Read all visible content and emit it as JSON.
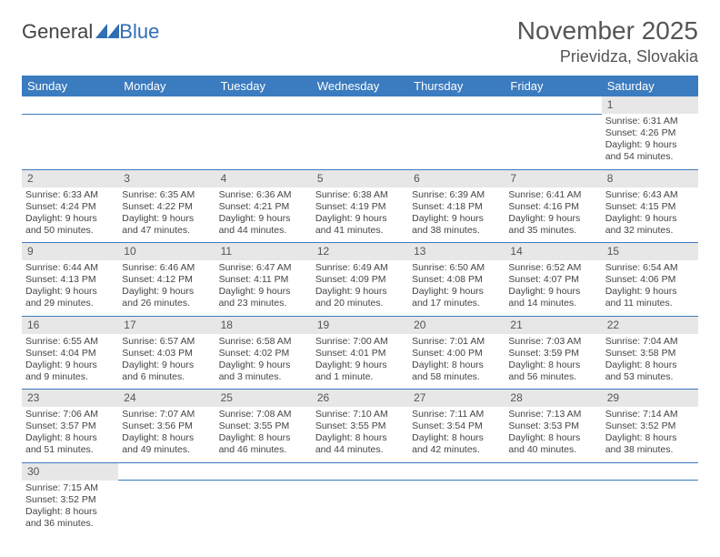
{
  "brand": {
    "name_part1": "General",
    "name_part2": "Blue"
  },
  "colors": {
    "header_bg": "#3b7bbf",
    "header_text": "#ffffff",
    "daynum_bg": "#e7e7e7",
    "border": "#3b7bbf",
    "text": "#444444",
    "title": "#555555",
    "brand_gray": "#555555",
    "brand_blue": "#2f6fb3"
  },
  "title": "November 2025",
  "location": "Prievidza, Slovakia",
  "weekdays": [
    "Sunday",
    "Monday",
    "Tuesday",
    "Wednesday",
    "Thursday",
    "Friday",
    "Saturday"
  ],
  "weeks": [
    [
      null,
      null,
      null,
      null,
      null,
      null,
      {
        "n": "1",
        "sr": "Sunrise: 6:31 AM",
        "ss": "Sunset: 4:26 PM",
        "d1": "Daylight: 9 hours",
        "d2": "and 54 minutes."
      }
    ],
    [
      {
        "n": "2",
        "sr": "Sunrise: 6:33 AM",
        "ss": "Sunset: 4:24 PM",
        "d1": "Daylight: 9 hours",
        "d2": "and 50 minutes."
      },
      {
        "n": "3",
        "sr": "Sunrise: 6:35 AM",
        "ss": "Sunset: 4:22 PM",
        "d1": "Daylight: 9 hours",
        "d2": "and 47 minutes."
      },
      {
        "n": "4",
        "sr": "Sunrise: 6:36 AM",
        "ss": "Sunset: 4:21 PM",
        "d1": "Daylight: 9 hours",
        "d2": "and 44 minutes."
      },
      {
        "n": "5",
        "sr": "Sunrise: 6:38 AM",
        "ss": "Sunset: 4:19 PM",
        "d1": "Daylight: 9 hours",
        "d2": "and 41 minutes."
      },
      {
        "n": "6",
        "sr": "Sunrise: 6:39 AM",
        "ss": "Sunset: 4:18 PM",
        "d1": "Daylight: 9 hours",
        "d2": "and 38 minutes."
      },
      {
        "n": "7",
        "sr": "Sunrise: 6:41 AM",
        "ss": "Sunset: 4:16 PM",
        "d1": "Daylight: 9 hours",
        "d2": "and 35 minutes."
      },
      {
        "n": "8",
        "sr": "Sunrise: 6:43 AM",
        "ss": "Sunset: 4:15 PM",
        "d1": "Daylight: 9 hours",
        "d2": "and 32 minutes."
      }
    ],
    [
      {
        "n": "9",
        "sr": "Sunrise: 6:44 AM",
        "ss": "Sunset: 4:13 PM",
        "d1": "Daylight: 9 hours",
        "d2": "and 29 minutes."
      },
      {
        "n": "10",
        "sr": "Sunrise: 6:46 AM",
        "ss": "Sunset: 4:12 PM",
        "d1": "Daylight: 9 hours",
        "d2": "and 26 minutes."
      },
      {
        "n": "11",
        "sr": "Sunrise: 6:47 AM",
        "ss": "Sunset: 4:11 PM",
        "d1": "Daylight: 9 hours",
        "d2": "and 23 minutes."
      },
      {
        "n": "12",
        "sr": "Sunrise: 6:49 AM",
        "ss": "Sunset: 4:09 PM",
        "d1": "Daylight: 9 hours",
        "d2": "and 20 minutes."
      },
      {
        "n": "13",
        "sr": "Sunrise: 6:50 AM",
        "ss": "Sunset: 4:08 PM",
        "d1": "Daylight: 9 hours",
        "d2": "and 17 minutes."
      },
      {
        "n": "14",
        "sr": "Sunrise: 6:52 AM",
        "ss": "Sunset: 4:07 PM",
        "d1": "Daylight: 9 hours",
        "d2": "and 14 minutes."
      },
      {
        "n": "15",
        "sr": "Sunrise: 6:54 AM",
        "ss": "Sunset: 4:06 PM",
        "d1": "Daylight: 9 hours",
        "d2": "and 11 minutes."
      }
    ],
    [
      {
        "n": "16",
        "sr": "Sunrise: 6:55 AM",
        "ss": "Sunset: 4:04 PM",
        "d1": "Daylight: 9 hours",
        "d2": "and 9 minutes."
      },
      {
        "n": "17",
        "sr": "Sunrise: 6:57 AM",
        "ss": "Sunset: 4:03 PM",
        "d1": "Daylight: 9 hours",
        "d2": "and 6 minutes."
      },
      {
        "n": "18",
        "sr": "Sunrise: 6:58 AM",
        "ss": "Sunset: 4:02 PM",
        "d1": "Daylight: 9 hours",
        "d2": "and 3 minutes."
      },
      {
        "n": "19",
        "sr": "Sunrise: 7:00 AM",
        "ss": "Sunset: 4:01 PM",
        "d1": "Daylight: 9 hours",
        "d2": "and 1 minute."
      },
      {
        "n": "20",
        "sr": "Sunrise: 7:01 AM",
        "ss": "Sunset: 4:00 PM",
        "d1": "Daylight: 8 hours",
        "d2": "and 58 minutes."
      },
      {
        "n": "21",
        "sr": "Sunrise: 7:03 AM",
        "ss": "Sunset: 3:59 PM",
        "d1": "Daylight: 8 hours",
        "d2": "and 56 minutes."
      },
      {
        "n": "22",
        "sr": "Sunrise: 7:04 AM",
        "ss": "Sunset: 3:58 PM",
        "d1": "Daylight: 8 hours",
        "d2": "and 53 minutes."
      }
    ],
    [
      {
        "n": "23",
        "sr": "Sunrise: 7:06 AM",
        "ss": "Sunset: 3:57 PM",
        "d1": "Daylight: 8 hours",
        "d2": "and 51 minutes."
      },
      {
        "n": "24",
        "sr": "Sunrise: 7:07 AM",
        "ss": "Sunset: 3:56 PM",
        "d1": "Daylight: 8 hours",
        "d2": "and 49 minutes."
      },
      {
        "n": "25",
        "sr": "Sunrise: 7:08 AM",
        "ss": "Sunset: 3:55 PM",
        "d1": "Daylight: 8 hours",
        "d2": "and 46 minutes."
      },
      {
        "n": "26",
        "sr": "Sunrise: 7:10 AM",
        "ss": "Sunset: 3:55 PM",
        "d1": "Daylight: 8 hours",
        "d2": "and 44 minutes."
      },
      {
        "n": "27",
        "sr": "Sunrise: 7:11 AM",
        "ss": "Sunset: 3:54 PM",
        "d1": "Daylight: 8 hours",
        "d2": "and 42 minutes."
      },
      {
        "n": "28",
        "sr": "Sunrise: 7:13 AM",
        "ss": "Sunset: 3:53 PM",
        "d1": "Daylight: 8 hours",
        "d2": "and 40 minutes."
      },
      {
        "n": "29",
        "sr": "Sunrise: 7:14 AM",
        "ss": "Sunset: 3:52 PM",
        "d1": "Daylight: 8 hours",
        "d2": "and 38 minutes."
      }
    ],
    [
      {
        "n": "30",
        "sr": "Sunrise: 7:15 AM",
        "ss": "Sunset: 3:52 PM",
        "d1": "Daylight: 8 hours",
        "d2": "and 36 minutes."
      },
      null,
      null,
      null,
      null,
      null,
      null
    ]
  ]
}
